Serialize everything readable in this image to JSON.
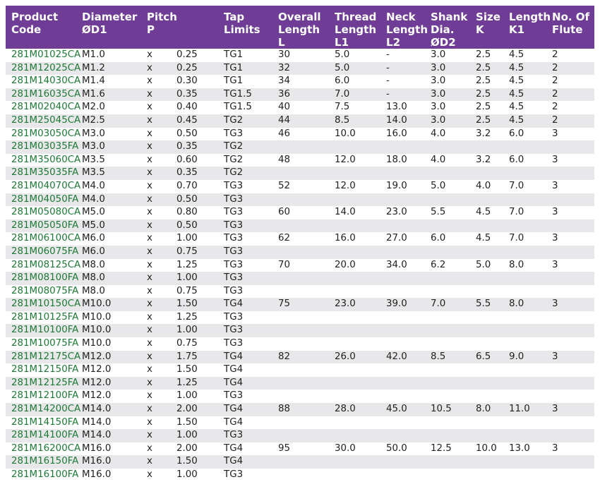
{
  "headers": {
    "product": [
      "Product",
      "Code"
    ],
    "diameter": [
      "Diameter",
      "ØD1"
    ],
    "pitch": [
      "Pitch",
      "P"
    ],
    "tap": [
      "Tap",
      "Limits"
    ],
    "overall": [
      "Overall",
      "Length",
      "L"
    ],
    "thread": [
      "Thread",
      "Length",
      "L1"
    ],
    "neck": [
      "Neck",
      "Length",
      "L2"
    ],
    "shank": [
      "Shank",
      "Dia.",
      "ØD2"
    ],
    "size": [
      "Size",
      "K"
    ],
    "lengthk": [
      "Length",
      "K1"
    ],
    "flute": [
      "No. Of",
      "Flute"
    ]
  },
  "rows": [
    [
      "281M01025CA",
      "M1.0",
      "x",
      "0.25",
      "TG1",
      "30",
      "5.0",
      "-",
      "3.0",
      "2.5",
      "4.5",
      "2"
    ],
    [
      "281M12025CA",
      "M1.2",
      "x",
      "0.25",
      "TG1",
      "32",
      "5.0",
      "-",
      "3.0",
      "2.5",
      "4.5",
      "2"
    ],
    [
      "281M14030CA",
      "M1.4",
      "x",
      "0.30",
      "TG1",
      "34",
      "6.0",
      "-",
      "3.0",
      "2.5",
      "4.5",
      "2"
    ],
    [
      "281M16035CA",
      "M1.6",
      "x",
      "0.35",
      "TG1.5",
      "36",
      "7.0",
      "-",
      "3.0",
      "2.5",
      "4.5",
      "2"
    ],
    [
      "281M02040CA",
      "M2.0",
      "x",
      "0.40",
      "TG1.5",
      "40",
      "7.5",
      "13.0",
      "3.0",
      "2.5",
      "4.5",
      "2"
    ],
    [
      "281M25045CA",
      "M2.5",
      "x",
      "0.45",
      "TG2",
      "44",
      "8.5",
      "14.0",
      "3.0",
      "2.5",
      "4.5",
      "2"
    ],
    [
      "281M03050CA",
      "M3.0",
      "x",
      "0.50",
      "TG3",
      "46",
      "10.0",
      "16.0",
      "4.0",
      "3.2",
      "6.0",
      "3"
    ],
    [
      "281M03035FA",
      "M3.0",
      "x",
      "0.35",
      "TG2",
      "",
      "",
      "",
      "",
      "",
      "",
      ""
    ],
    [
      "281M35060CA",
      "M3.5",
      "x",
      "0.60",
      "TG2",
      "48",
      "12.0",
      "18.0",
      "4.0",
      "3.2",
      "6.0",
      "3"
    ],
    [
      "281M35035FA",
      "M3.5",
      "x",
      "0.35",
      "TG2",
      "",
      "",
      "",
      "",
      "",
      "",
      ""
    ],
    [
      "281M04070CA",
      "M4.0",
      "x",
      "0.70",
      "TG3",
      "52",
      "12.0",
      "19.0",
      "5.0",
      "4.0",
      "7.0",
      "3"
    ],
    [
      "281M04050FA",
      "M4.0",
      "x",
      "0.50",
      "TG3",
      "",
      "",
      "",
      "",
      "",
      "",
      ""
    ],
    [
      "281M05080CA",
      "M5.0",
      "x",
      "0.80",
      "TG3",
      "60",
      "14.0",
      "23.0",
      "5.5",
      "4.5",
      "7.0",
      "3"
    ],
    [
      "281M05050FA",
      "M5.0",
      "x",
      "0.50",
      "TG3",
      "",
      "",
      "",
      "",
      "",
      "",
      ""
    ],
    [
      "281M06100CA",
      "M6.0",
      "x",
      "1.00",
      "TG3",
      "62",
      "16.0",
      "27.0",
      "6.0",
      "4.5",
      "7.0",
      "3"
    ],
    [
      "281M06075FA",
      "M6.0",
      "x",
      "0.75",
      "TG3",
      "",
      "",
      "",
      "",
      "",
      "",
      ""
    ],
    [
      "281M08125CA",
      "M8.0",
      "x",
      "1.25",
      "TG3",
      "70",
      "20.0",
      "34.0",
      "6.2",
      "5.0",
      "8.0",
      "3"
    ],
    [
      "281M08100FA",
      "M8.0",
      "x",
      "1.00",
      "TG3",
      "",
      "",
      "",
      "",
      "",
      "",
      ""
    ],
    [
      "281M08075FA",
      "M8.0",
      "x",
      "0.75",
      "TG3",
      "",
      "",
      "",
      "",
      "",
      "",
      ""
    ],
    [
      "281M10150CA",
      "M10.0",
      "x",
      "1.50",
      "TG4",
      "75",
      "23.0",
      "39.0",
      "7.0",
      "5.5",
      "8.0",
      "3"
    ],
    [
      "281M10125FA",
      "M10.0",
      "x",
      "1.25",
      "TG3",
      "",
      "",
      "",
      "",
      "",
      "",
      ""
    ],
    [
      "281M10100FA",
      "M10.0",
      "x",
      "1.00",
      "TG3",
      "",
      "",
      "",
      "",
      "",
      "",
      ""
    ],
    [
      "281M10075FA",
      "M10.0",
      "x",
      "0.75",
      "TG3",
      "",
      "",
      "",
      "",
      "",
      "",
      ""
    ],
    [
      "281M12175CA",
      "M12.0",
      "x",
      "1.75",
      "TG4",
      "82",
      "26.0",
      "42.0",
      "8.5",
      "6.5",
      "9.0",
      "3"
    ],
    [
      "281M12150FA",
      "M12.0",
      "x",
      "1.50",
      "TG4",
      "",
      "",
      "",
      "",
      "",
      "",
      ""
    ],
    [
      "281M12125FA",
      "M12.0",
      "x",
      "1.25",
      "TG4",
      "",
      "",
      "",
      "",
      "",
      "",
      ""
    ],
    [
      "281M12100FA",
      "M12.0",
      "x",
      "1.00",
      "TG3",
      "",
      "",
      "",
      "",
      "",
      "",
      ""
    ],
    [
      "281M14200CA",
      "M14.0",
      "x",
      "2.00",
      "TG4",
      "88",
      "28.0",
      "45.0",
      "10.5",
      "8.0",
      "11.0",
      "3"
    ],
    [
      "281M14150FA",
      "M14.0",
      "x",
      "1.50",
      "TG4",
      "",
      "",
      "",
      "",
      "",
      "",
      ""
    ],
    [
      "281M14100FA",
      "M14.0",
      "x",
      "1.00",
      "TG3",
      "",
      "",
      "",
      "",
      "",
      "",
      ""
    ],
    [
      "281M16200CA",
      "M16.0",
      "x",
      "2.00",
      "TG4",
      "95",
      "30.0",
      "50.0",
      "12.5",
      "10.0",
      "13.0",
      "3"
    ],
    [
      "281M16150FA",
      "M16.0",
      "x",
      "1.50",
      "TG4",
      "",
      "",
      "",
      "",
      "",
      "",
      ""
    ],
    [
      "281M16100FA",
      "M16.0",
      "x",
      "1.00",
      "TG3",
      "",
      "",
      "",
      "",
      "",
      "",
      ""
    ]
  ]
}
